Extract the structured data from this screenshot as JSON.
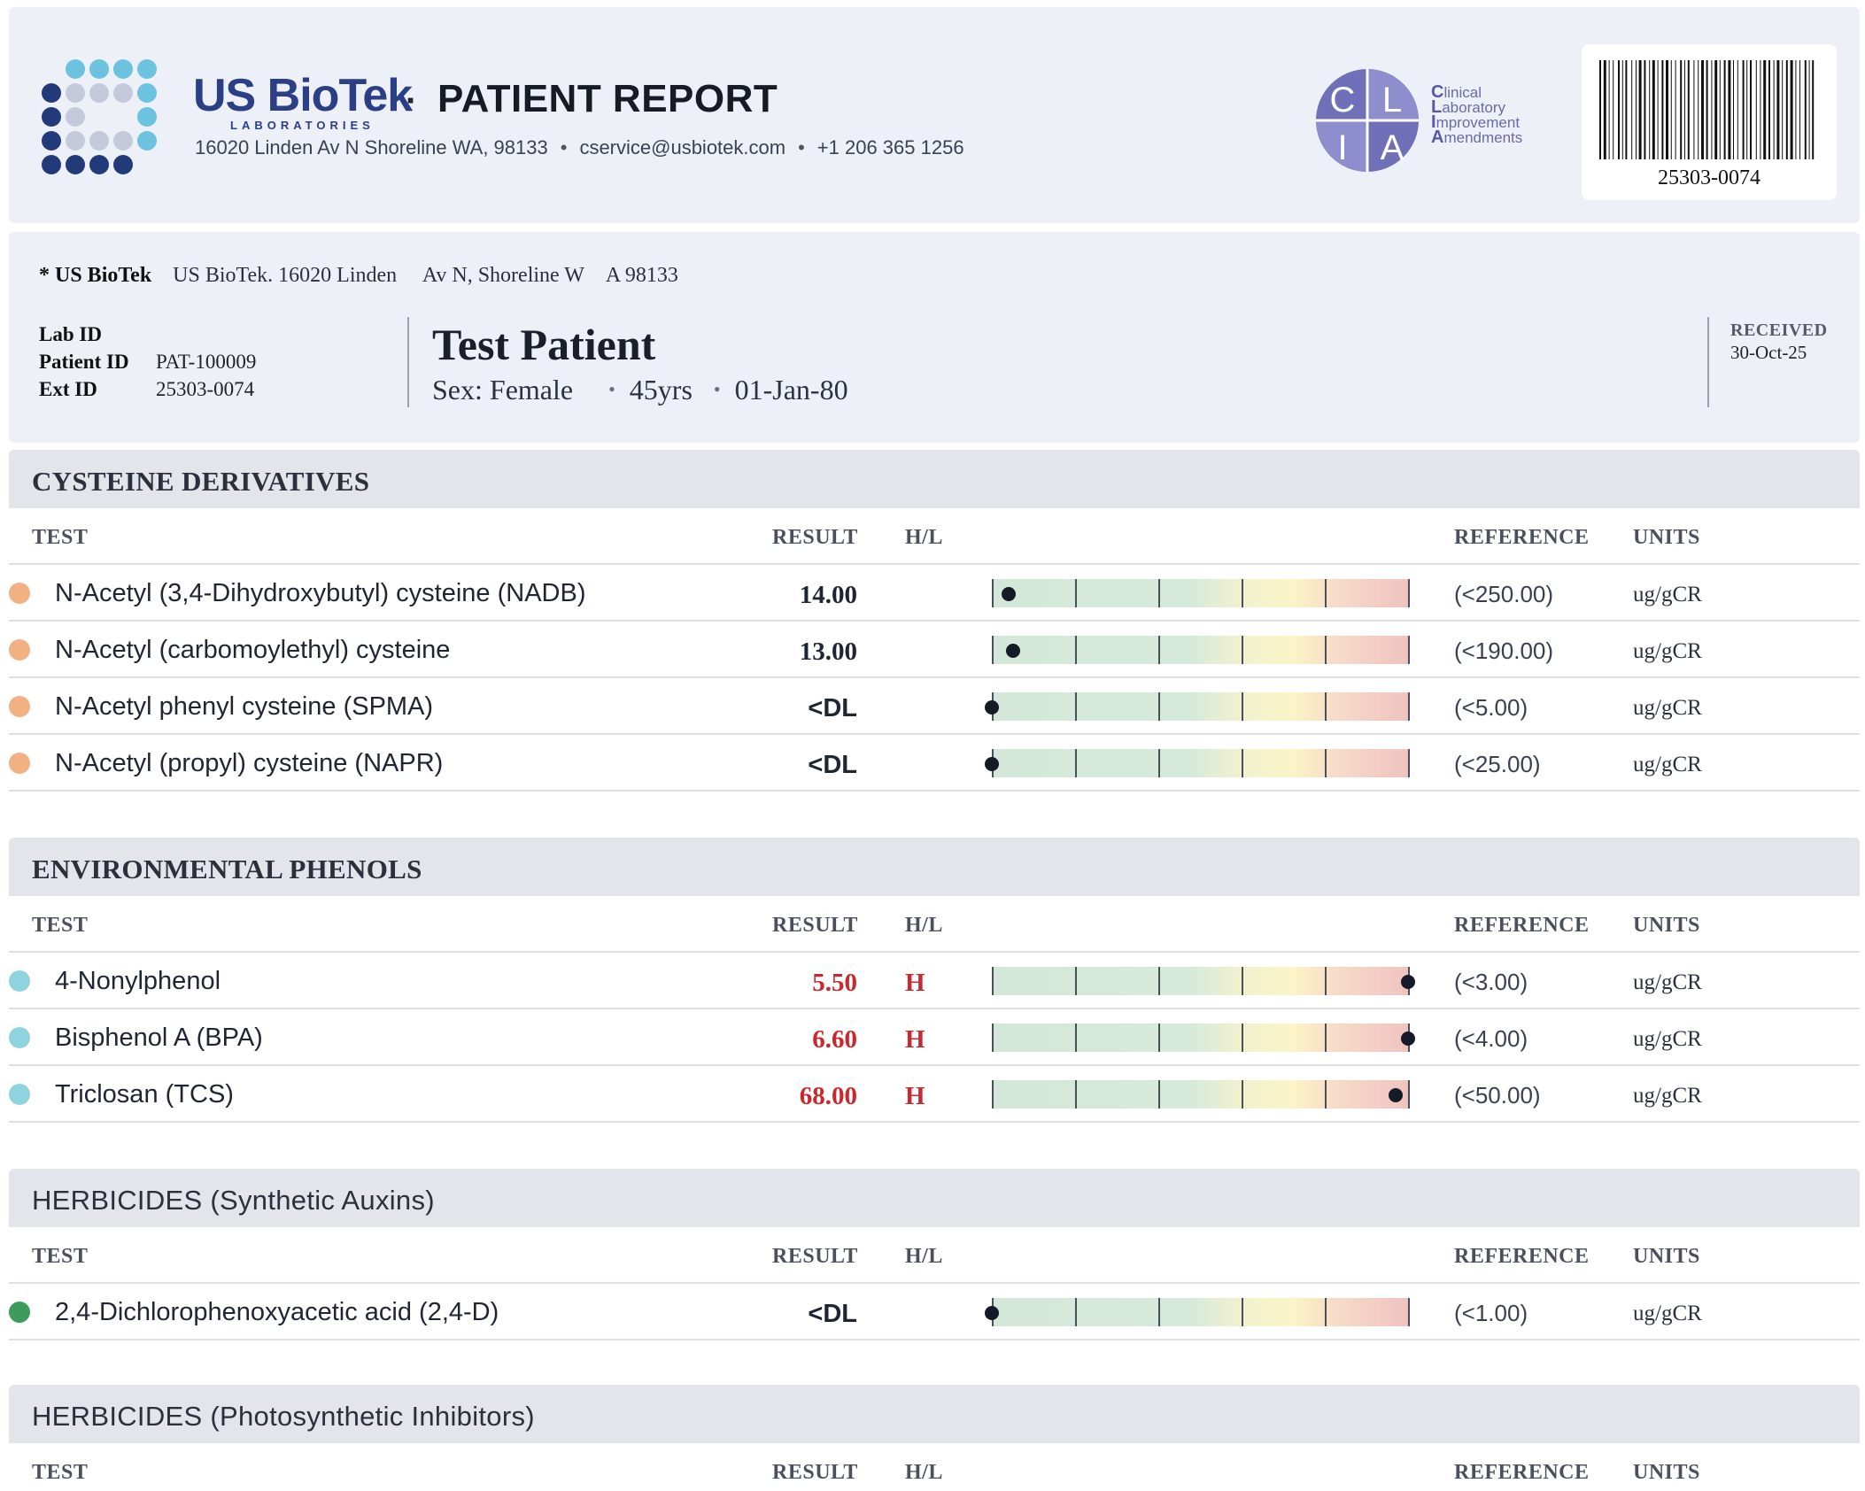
{
  "header": {
    "brand": "US BioTek",
    "brand_sub": "LABORATORIES",
    "separator": "·",
    "title": "PATIENT REPORT",
    "address": "16020 Linden Av N Shoreline WA, 98133",
    "email": "cservice@usbiotek.com",
    "phone": "+1 206 365 1256",
    "clia": {
      "letters": [
        "C",
        "L",
        "I",
        "A"
      ],
      "lines": [
        "linical",
        "aboratory",
        "mprovement",
        "mendments"
      ]
    },
    "barcode_number": "25303-0074"
  },
  "patient": {
    "lab_name": "* US BioTek",
    "lab_address": "US BioTek. 16020 Linden  Av N, Shoreline W A 98133",
    "lab_id_label": "Lab ID",
    "lab_id": "",
    "patient_id_label": "Patient ID",
    "patient_id": "PAT-100009",
    "ext_id_label": "Ext ID",
    "ext_id": "25303-0074",
    "name": "Test Patient",
    "sex": "Sex: Female",
    "age": "45yrs",
    "dob": "01-Jan-80",
    "received_label": "RECEIVED",
    "received_date": "30-Oct-25"
  },
  "columns": {
    "test": "TEST",
    "result": "RESULT",
    "hl": "H/L",
    "reference": "REFERENCE",
    "units": "UNITS"
  },
  "colors": {
    "cysteine": "#f2b183",
    "phenols": "#8fd3de",
    "auxins": "#3e9b5e",
    "high": "#c8282e"
  },
  "sections": [
    {
      "title": "CYSTEINE DERIVATIVES",
      "rows": [
        {
          "name": "N-Acetyl (3,4-Dihydroxybutyl) cysteine (NADB)",
          "result": "14.00",
          "flag": "",
          "reference": "(<250.00)",
          "units": "ug/gCR",
          "level": 0.04
        },
        {
          "name": "N-Acetyl (carbomoylethyl) cysteine",
          "result": "13.00",
          "flag": "",
          "reference": "(<190.00)",
          "units": "ug/gCR",
          "level": 0.05
        },
        {
          "name": "N-Acetyl phenyl cysteine (SPMA)",
          "result": "<DL",
          "flag": "",
          "reference": "(<5.00)",
          "units": "ug/gCR",
          "level": 0.0
        },
        {
          "name": "N-Acetyl (propyl) cysteine (NAPR)",
          "result": "<DL",
          "flag": "",
          "reference": "(<25.00)",
          "units": "ug/gCR",
          "level": 0.0
        }
      ]
    },
    {
      "title": "ENVIRONMENTAL PHENOLS",
      "rows": [
        {
          "name": "4-Nonylphenol",
          "result": "5.50",
          "flag": "H",
          "reference": "(<3.00)",
          "units": "ug/gCR",
          "level": 1.0
        },
        {
          "name": "Bisphenol A (BPA)",
          "result": "6.60",
          "flag": "H",
          "reference": "(<4.00)",
          "units": "ug/gCR",
          "level": 1.0
        },
        {
          "name": "Triclosan (TCS)",
          "result": "68.00",
          "flag": "H",
          "reference": "(<50.00)",
          "units": "ug/gCR",
          "level": 0.97
        }
      ]
    },
    {
      "title": "HERBICIDES (Synthetic Auxins)",
      "rows": [
        {
          "name": "2,4-Dichlorophenoxyacetic acid (2,4-D)",
          "result": "<DL",
          "flag": "",
          "reference": "(<1.00)",
          "units": "ug/gCR",
          "level": 0.0
        }
      ]
    },
    {
      "title": "HERBICIDES (Photosynthetic Inhibitors)",
      "rows": []
    }
  ]
}
